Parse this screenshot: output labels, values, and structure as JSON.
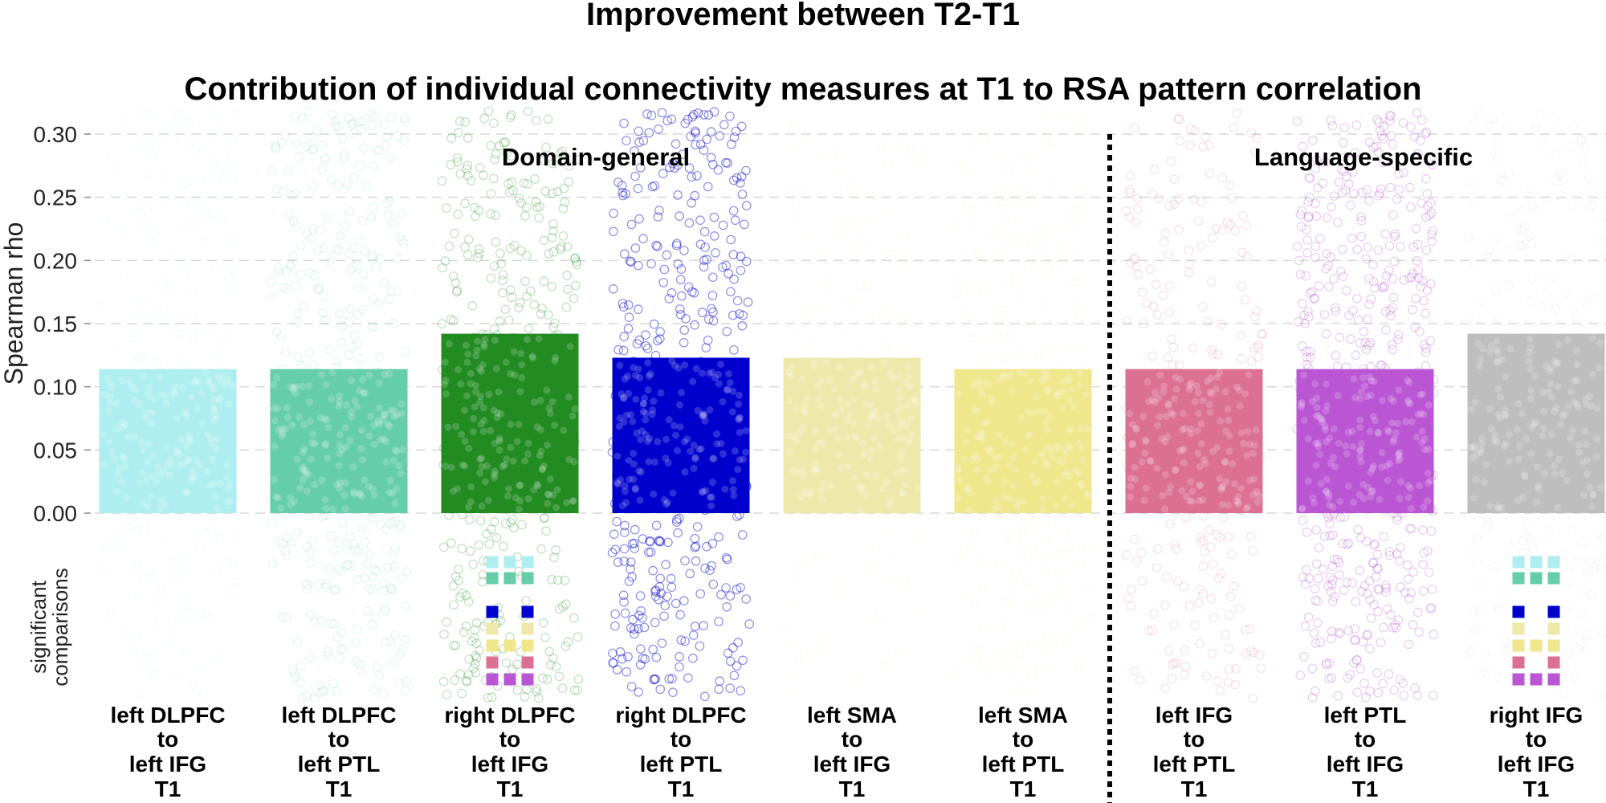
{
  "chart_data": {
    "type": "bar",
    "title": "Improvement between T2-T1",
    "subtitle": "Contribution of individual connectivity measures at T1 to RSA pattern correlation",
    "ylabel": "Spearman rho",
    "sig_label_line1": "significant",
    "sig_label_line2": "comparisons",
    "ylim": [
      0.0,
      0.3
    ],
    "yticks": [
      "0.00",
      "0.05",
      "0.10",
      "0.15",
      "0.20",
      "0.25",
      "0.30"
    ],
    "grid": true,
    "groups": [
      {
        "label": "Domain-general",
        "categories": [
          0,
          1,
          2,
          3,
          4,
          5
        ]
      },
      {
        "label": "Language-specific",
        "categories": [
          6,
          7,
          8
        ]
      }
    ],
    "categories": [
      {
        "lines": [
          "left DLPFC",
          "to",
          "left IFG",
          "T1"
        ],
        "value": 0.114,
        "color": "#aeeef0"
      },
      {
        "lines": [
          "left DLPFC",
          "to",
          "left PTL",
          "T1"
        ],
        "value": 0.114,
        "color": "#66cdaa"
      },
      {
        "lines": [
          "right DLPFC",
          "to",
          "left IFG",
          "T1"
        ],
        "value": 0.142,
        "color": "#228b22"
      },
      {
        "lines": [
          "right DLPFC",
          "to",
          "left PTL",
          "T1"
        ],
        "value": 0.123,
        "color": "#0000cd"
      },
      {
        "lines": [
          "left SMA",
          "to",
          "left IFG",
          "T1"
        ],
        "value": 0.123,
        "color": "#eee8aa"
      },
      {
        "lines": [
          "left SMA",
          "to",
          "left PTL",
          "T1"
        ],
        "value": 0.114,
        "color": "#f0e68c"
      },
      {
        "lines": [
          "left IFG",
          "to",
          "left PTL",
          "T1"
        ],
        "value": 0.114,
        "color": "#db7093"
      },
      {
        "lines": [
          "left PTL",
          "to",
          "left IFG",
          "T1"
        ],
        "value": 0.114,
        "color": "#ba55d3"
      },
      {
        "lines": [
          "right IFG",
          "to",
          "left IFG",
          "T1"
        ],
        "value": 0.142,
        "color": "#bebebe"
      }
    ],
    "significant_comparisons": [
      {
        "bar": 2,
        "rows": [
          {
            "compared_to": 0,
            "marks": [
              true,
              true,
              true
            ]
          },
          {
            "compared_to": 1,
            "marks": [
              true,
              true,
              true
            ]
          },
          {
            "compared_to": 3,
            "marks": [
              true,
              false,
              true
            ]
          },
          {
            "compared_to": 4,
            "marks": [
              true,
              false,
              true
            ]
          },
          {
            "compared_to": 5,
            "marks": [
              true,
              true,
              true
            ]
          },
          {
            "compared_to": 6,
            "marks": [
              true,
              false,
              true
            ]
          },
          {
            "compared_to": 7,
            "marks": [
              true,
              true,
              true
            ]
          }
        ]
      },
      {
        "bar": 8,
        "rows": [
          {
            "compared_to": 0,
            "marks": [
              true,
              true,
              true
            ]
          },
          {
            "compared_to": 1,
            "marks": [
              true,
              true,
              true
            ]
          },
          {
            "compared_to": 3,
            "marks": [
              true,
              false,
              true
            ]
          },
          {
            "compared_to": 4,
            "marks": [
              true,
              false,
              true
            ]
          },
          {
            "compared_to": 5,
            "marks": [
              true,
              true,
              true
            ]
          },
          {
            "compared_to": 6,
            "marks": [
              true,
              false,
              true
            ]
          },
          {
            "compared_to": 7,
            "marks": [
              true,
              true,
              true
            ]
          }
        ]
      }
    ]
  }
}
